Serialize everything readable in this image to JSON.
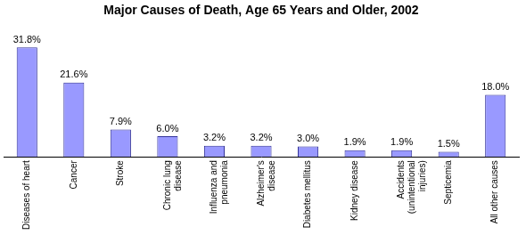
{
  "chart_data": {
    "type": "bar",
    "title": "Major Causes of Death, Age 65 Years and Older, 2002",
    "categories": [
      "Diseases of heart",
      "Cancer",
      "Stroke",
      "Chronic lung disease",
      "Influenza and pneumonia",
      "Alzheimer's disease",
      "Diabetes mellitus",
      "Kidney disease",
      "Accidents (unintentional injuries)",
      "Septicemia",
      "All other causes"
    ],
    "values": [
      31.8,
      21.6,
      7.9,
      6.0,
      3.2,
      3.2,
      3.0,
      1.9,
      1.9,
      1.5,
      18.0
    ],
    "value_labels": [
      "31.8%",
      "21.6%",
      "7.9%",
      "6.0%",
      "3.2%",
      "3.2%",
      "3.0%",
      "1.9%",
      "1.9%",
      "1.5%",
      "18.0%"
    ],
    "color": "#9999ff",
    "data_labels": true,
    "tick_labels": "x",
    "grid": false
  }
}
